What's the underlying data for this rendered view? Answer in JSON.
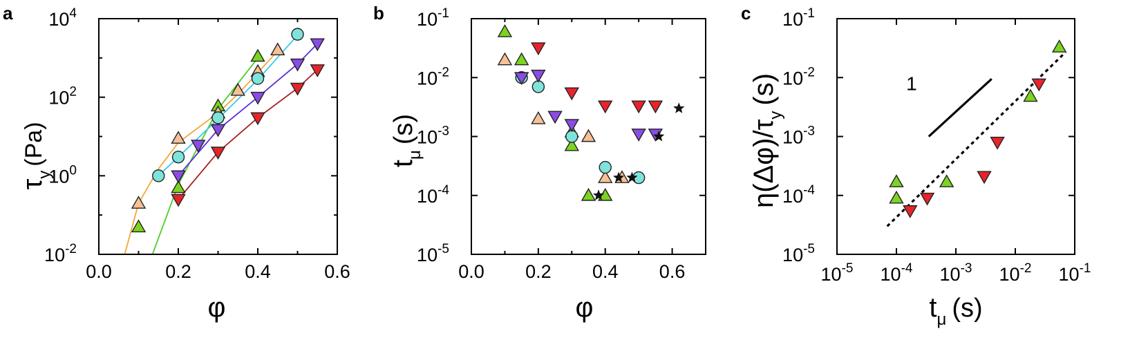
{
  "colors": {
    "green": "#7dd321",
    "tan": "#f6c196",
    "cyan": "#7fe3dc",
    "purple": "#8a4ce6",
    "red": "#e8242a",
    "fit_orange": "#f5a53a",
    "fit_green": "#4ccd2a",
    "fit_cyan": "#3cc8e6",
    "fit_purple": "#5a2fd6",
    "fit_red": "#a81d1d",
    "star": "#111111"
  },
  "chart_data": [
    {
      "panel": "a",
      "type": "scatter",
      "xlabel": "φ",
      "ylabel": "τy (Pa)",
      "ylabel_main": "τ",
      "ylabel_sub": "y",
      "ylabel_unit": "(Pa)",
      "xscale": "linear",
      "yscale": "log",
      "xlim": [
        0,
        0.6
      ],
      "ylim": [
        0.01,
        10000
      ],
      "xticks": [
        0,
        0.2,
        0.4,
        0.6
      ],
      "xtick_labels": [
        "0.0",
        "0.2",
        "0.4",
        "0.6"
      ],
      "yticks": [
        0.01,
        1,
        100,
        10000
      ],
      "ytick_bases": [
        "10",
        "10",
        "10",
        "10"
      ],
      "ytick_exps": [
        "-2",
        "0",
        "2",
        "4"
      ],
      "series": [
        {
          "color_key": "green",
          "marker": "triangle-up",
          "points": [
            [
              0.1,
              0.05
            ],
            [
              0.2,
              0.5
            ],
            [
              0.3,
              60
            ],
            [
              0.4,
              1100
            ]
          ]
        },
        {
          "color_key": "tan",
          "marker": "triangle-up",
          "points": [
            [
              0.1,
              0.2
            ],
            [
              0.2,
              9
            ],
            [
              0.3,
              40
            ],
            [
              0.35,
              150
            ],
            [
              0.4,
              450
            ],
            [
              0.45,
              1600
            ]
          ]
        },
        {
          "color_key": "cyan",
          "marker": "circle",
          "points": [
            [
              0.15,
              1
            ],
            [
              0.2,
              3
            ],
            [
              0.3,
              30
            ],
            [
              0.4,
              300
            ],
            [
              0.5,
              4000
            ]
          ]
        },
        {
          "color_key": "purple",
          "marker": "triangle-down",
          "points": [
            [
              0.2,
              1
            ],
            [
              0.25,
              6
            ],
            [
              0.3,
              15
            ],
            [
              0.4,
              100
            ],
            [
              0.5,
              700
            ],
            [
              0.55,
              2300
            ]
          ]
        },
        {
          "color_key": "red",
          "marker": "triangle-down",
          "points": [
            [
              0.2,
              0.25
            ],
            [
              0.3,
              4
            ],
            [
              0.4,
              30
            ],
            [
              0.5,
              170
            ],
            [
              0.55,
              500
            ]
          ]
        }
      ],
      "fit_lines": [
        {
          "color_key": "fit_orange",
          "points": [
            [
              0.065,
              0.01
            ],
            [
              0.1,
              0.2
            ],
            [
              0.15,
              1.5
            ],
            [
              0.2,
              7
            ],
            [
              0.3,
              40
            ],
            [
              0.35,
              120
            ],
            [
              0.4,
              420
            ],
            [
              0.45,
              1500
            ]
          ]
        },
        {
          "color_key": "fit_green",
          "points": [
            [
              0.135,
              0.01
            ],
            [
              0.2,
              0.6
            ],
            [
              0.3,
              50
            ],
            [
              0.4,
              1000
            ]
          ]
        },
        {
          "color_key": "fit_cyan",
          "points": [
            [
              0.15,
              1
            ],
            [
              0.2,
              3
            ],
            [
              0.3,
              28
            ],
            [
              0.4,
              280
            ],
            [
              0.5,
              3800
            ]
          ]
        },
        {
          "color_key": "fit_purple",
          "points": [
            [
              0.2,
              1
            ],
            [
              0.3,
              15
            ],
            [
              0.4,
              100
            ],
            [
              0.5,
              700
            ],
            [
              0.55,
              2300
            ]
          ]
        },
        {
          "color_key": "fit_red",
          "points": [
            [
              0.2,
              0.25
            ],
            [
              0.3,
              4
            ],
            [
              0.4,
              30
            ],
            [
              0.5,
              170
            ],
            [
              0.55,
              500
            ]
          ]
        }
      ]
    },
    {
      "panel": "b",
      "type": "scatter",
      "xlabel": "φ",
      "ylabel": "tμ (s)",
      "ylabel_main": "t",
      "ylabel_sub": "μ",
      "ylabel_unit": "(s)",
      "xscale": "linear",
      "yscale": "log",
      "xlim": [
        0,
        0.7
      ],
      "ylim": [
        1e-05,
        0.1
      ],
      "xticks": [
        0,
        0.2,
        0.4,
        0.6
      ],
      "xtick_labels": [
        "0.0",
        "0.2",
        "0.4",
        "0.6"
      ],
      "yticks": [
        1e-05,
        0.0001,
        0.001,
        0.01,
        0.1
      ],
      "ytick_bases": [
        "10",
        "10",
        "10",
        "10",
        "10"
      ],
      "ytick_exps": [
        "-5",
        "-4",
        "-3",
        "-2",
        "-1"
      ],
      "series": [
        {
          "color_key": "green",
          "marker": "triangle-up",
          "points": [
            [
              0.1,
              0.06
            ],
            [
              0.15,
              0.02
            ],
            [
              0.3,
              0.0007
            ],
            [
              0.35,
              0.0001
            ],
            [
              0.4,
              0.0001
            ]
          ]
        },
        {
          "color_key": "tan",
          "marker": "triangle-up",
          "points": [
            [
              0.1,
              0.02
            ],
            [
              0.2,
              0.002
            ],
            [
              0.3,
              0.0012
            ],
            [
              0.35,
              0.001
            ],
            [
              0.4,
              0.0002
            ],
            [
              0.45,
              0.0002
            ]
          ]
        },
        {
          "color_key": "cyan",
          "marker": "circle",
          "points": [
            [
              0.15,
              0.01
            ],
            [
              0.2,
              0.007
            ],
            [
              0.3,
              0.001
            ],
            [
              0.4,
              0.0003
            ],
            [
              0.5,
              0.0002
            ]
          ]
        },
        {
          "color_key": "purple",
          "marker": "triangle-down",
          "points": [
            [
              0.15,
              0.01
            ],
            [
              0.2,
              0.011
            ],
            [
              0.25,
              0.0022
            ],
            [
              0.3,
              0.0016
            ],
            [
              0.5,
              0.0011
            ],
            [
              0.55,
              0.0011
            ]
          ]
        },
        {
          "color_key": "red",
          "marker": "triangle-down",
          "points": [
            [
              0.2,
              0.032
            ],
            [
              0.3,
              0.0055
            ],
            [
              0.4,
              0.0033
            ],
            [
              0.5,
              0.0033
            ],
            [
              0.55,
              0.0033
            ]
          ]
        },
        {
          "color_key": "star",
          "marker": "star",
          "points": [
            [
              0.38,
              0.0001
            ],
            [
              0.44,
              0.0002
            ],
            [
              0.48,
              0.0002
            ],
            [
              0.56,
              0.001
            ],
            [
              0.62,
              0.003
            ]
          ]
        }
      ]
    },
    {
      "panel": "c",
      "type": "scatter",
      "xlabel": "tμ (s)",
      "ylabel": "η(Δφ)/τy (s)",
      "xlabel_main": "t",
      "xlabel_sub": "μ",
      "xlabel_unit": "(s)",
      "ylabel_pre": "η(Δφ)/τ",
      "ylabel_sub": "y",
      "ylabel_unit": "(s)",
      "xscale": "log",
      "yscale": "log",
      "xlim": [
        1e-05,
        0.1
      ],
      "ylim": [
        1e-05,
        0.1
      ],
      "xticks": [
        1e-05,
        0.0001,
        0.001,
        0.01,
        0.1
      ],
      "xtick_bases": [
        "10",
        "10",
        "10",
        "10",
        "10"
      ],
      "xtick_exps": [
        "-5",
        "-4",
        "-3",
        "-2",
        "-1"
      ],
      "yticks": [
        1e-05,
        0.0001,
        0.001,
        0.01,
        0.1
      ],
      "ytick_bases": [
        "10",
        "10",
        "10",
        "10",
        "10"
      ],
      "ytick_exps": [
        "-5",
        "-4",
        "-3",
        "-2",
        "-1"
      ],
      "slope_label": "1",
      "slope_line": [
        [
          0.00035,
          0.001
        ],
        [
          0.004,
          0.0095
        ]
      ],
      "fit_line": [
        [
          7e-05,
          3e-05
        ],
        [
          0.07,
          0.027
        ]
      ],
      "series": [
        {
          "color_key": "green",
          "marker": "triangle-up",
          "points": [
            [
              0.0001,
              0.00017
            ],
            [
              0.0001,
              9e-05
            ],
            [
              0.0007,
              0.00017
            ],
            [
              0.018,
              0.0048
            ],
            [
              0.055,
              0.033
            ]
          ]
        },
        {
          "color_key": "red",
          "marker": "triangle-down",
          "points": [
            [
              0.00017,
              5.5e-05
            ],
            [
              0.00033,
              9e-05
            ],
            [
              0.003,
              0.00021
            ],
            [
              0.005,
              0.0008
            ],
            [
              0.025,
              0.0078
            ]
          ]
        }
      ]
    }
  ]
}
